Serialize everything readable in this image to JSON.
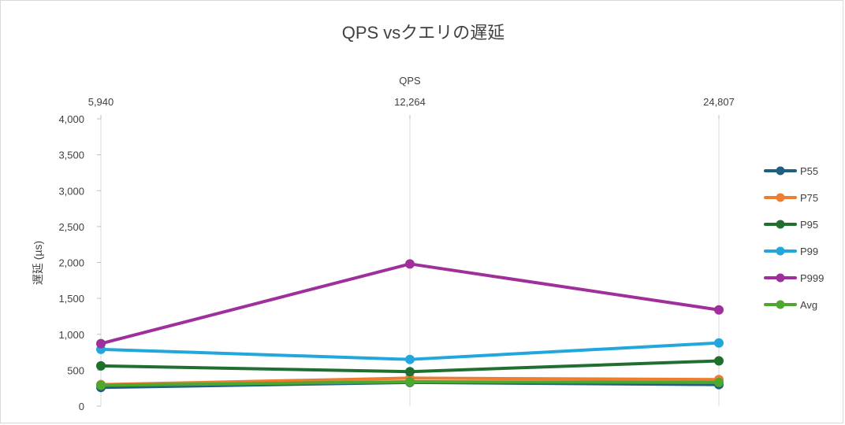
{
  "chart_data": {
    "type": "line",
    "title": "QPS vsクエリの遅延",
    "xlabel": "QPS",
    "ylabel": "遅延 (µs)",
    "x": [
      "5,940",
      "12,264",
      "24,807"
    ],
    "ylim": [
      0,
      4000
    ],
    "yticks": [
      "0",
      "500",
      "1,000",
      "1,500",
      "2,000",
      "2,500",
      "3,000",
      "3,500",
      "4,000"
    ],
    "ytick_values": [
      0,
      500,
      1000,
      1500,
      2000,
      2500,
      3000,
      3500,
      4000
    ],
    "legend_position": "right",
    "grid": "vertical",
    "series": [
      {
        "name": "P55",
        "color": "#1f5f7f",
        "values": [
          260,
          330,
          300
        ]
      },
      {
        "name": "P75",
        "color": "#ed7d31",
        "values": [
          300,
          390,
          370
        ]
      },
      {
        "name": "P95",
        "color": "#1f6f2f",
        "values": [
          560,
          480,
          630
        ]
      },
      {
        "name": "P99",
        "color": "#22a7dc",
        "values": [
          790,
          650,
          880
        ]
      },
      {
        "name": "P999",
        "color": "#9e2f9b",
        "values": [
          870,
          1980,
          1340
        ]
      },
      {
        "name": "Avg",
        "color": "#4ea72e",
        "values": [
          290,
          340,
          330
        ]
      }
    ]
  }
}
